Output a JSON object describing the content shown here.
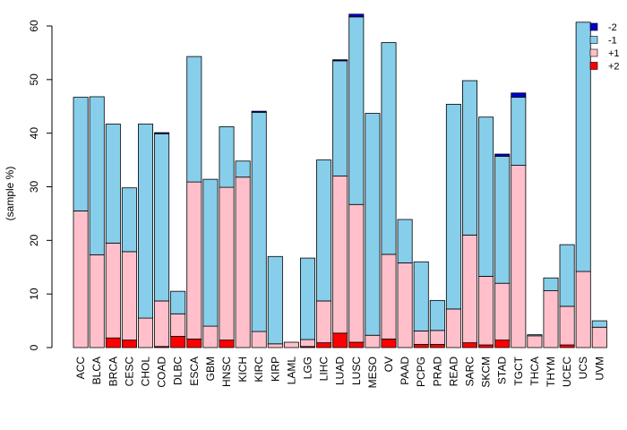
{
  "chart_data": {
    "type": "bar",
    "stacked": true,
    "title": "",
    "xlabel": "",
    "ylabel": "(sample %)",
    "ylim": [
      0,
      62
    ],
    "yticks": [
      0,
      10,
      20,
      30,
      40,
      50,
      60
    ],
    "grid": false,
    "legend_position": "top-right",
    "categories": [
      "ACC",
      "BLCA",
      "BRCA",
      "CESC",
      "CHOL",
      "COAD",
      "DLBC",
      "ESCA",
      "GBM",
      "HNSC",
      "KICH",
      "KIRC",
      "KIRP",
      "LAML",
      "LGG",
      "LIHC",
      "LUAD",
      "LUSC",
      "MESO",
      "OV",
      "PAAD",
      "PCPG",
      "PRAD",
      "READ",
      "SARC",
      "SKCM",
      "STAD",
      "TGCT",
      "THCA",
      "THYM",
      "UCEC",
      "UCS",
      "UVM"
    ],
    "series": [
      {
        "name": "+2",
        "color": "#ff0000",
        "values": [
          0,
          0,
          1.8,
          1.4,
          0,
          0.2,
          2.1,
          1.6,
          0,
          1.4,
          0,
          0,
          0,
          0,
          0.2,
          0.9,
          2.7,
          1.0,
          0,
          1.6,
          0,
          0.6,
          0.6,
          0,
          0.9,
          0.5,
          1.4,
          0,
          0,
          0,
          0.5,
          0,
          0
        ]
      },
      {
        "name": "+1",
        "color": "#ffc0cb",
        "values": [
          25.5,
          17.3,
          17.7,
          16.5,
          5.5,
          8.5,
          4.2,
          29.3,
          4.0,
          28.5,
          31.8,
          3.0,
          0.7,
          1.0,
          1.3,
          7.8,
          29.3,
          25.7,
          2.3,
          15.8,
          15.8,
          2.5,
          2.6,
          7.2,
          20.1,
          12.8,
          10.6,
          34.0,
          2.2,
          10.6,
          7.2,
          14.2,
          3.8
        ]
      },
      {
        "name": "-1",
        "color": "#87ceeb",
        "values": [
          21.2,
          29.5,
          22.2,
          11.9,
          36.2,
          31.2,
          4.2,
          23.4,
          27.4,
          11.3,
          3.0,
          40.9,
          16.3,
          0,
          15.2,
          26.3,
          21.5,
          35.0,
          41.4,
          39.5,
          8.1,
          12.9,
          5.6,
          38.2,
          28.8,
          29.7,
          23.7,
          12.7,
          0.2,
          2.4,
          11.5,
          46.5,
          1.2
        ]
      },
      {
        "name": "-2",
        "color": "#0000cd",
        "values": [
          0,
          0,
          0,
          0,
          0,
          0.2,
          0,
          0,
          0,
          0,
          0,
          0.2,
          0,
          0,
          0,
          0,
          0.2,
          0.5,
          0,
          0,
          0,
          0,
          0,
          0,
          0,
          0,
          0.4,
          0.8,
          0,
          0,
          0,
          0,
          0
        ]
      }
    ],
    "legend_order": [
      "-2",
      "-1",
      "+1",
      "+2"
    ]
  }
}
